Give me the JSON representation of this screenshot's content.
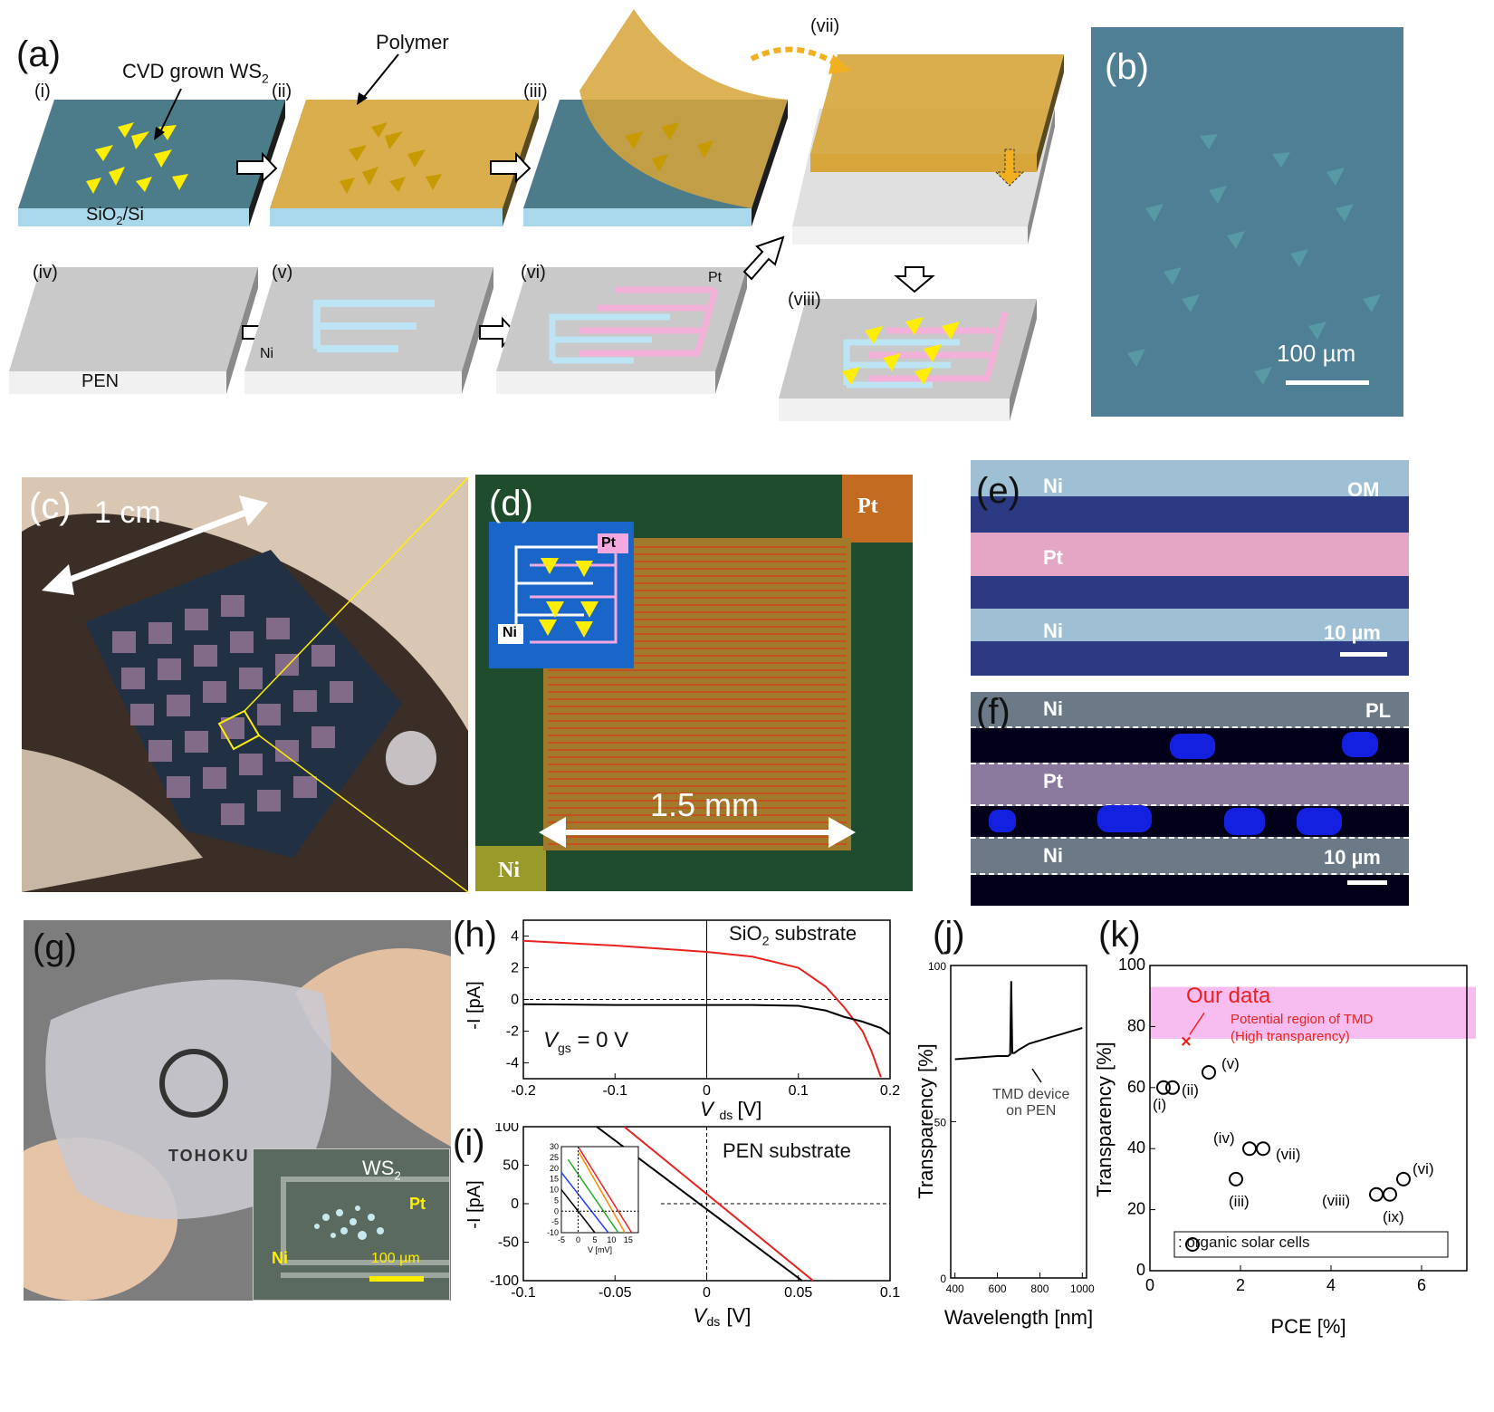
{
  "panels": {
    "a": {
      "label": "(a)",
      "steps": [
        "(i)",
        "(ii)",
        "(iii)",
        "(iv)",
        "(v)",
        "(vi)",
        "(vii)",
        "(viii)"
      ],
      "texts": {
        "cvd": "CVD grown WS",
        "cvd_sub": "2",
        "polymer": "Polymer",
        "sio2": "SiO",
        "sio2_sub": "2",
        "sio2_rest": "/Si",
        "pen": "PEN",
        "ni": "Ni",
        "pt": "Pt"
      }
    },
    "b": {
      "label": "(b)",
      "scale": "100 µm"
    },
    "c": {
      "label": "(c)",
      "scale": "1 cm"
    },
    "d": {
      "label": "(d)",
      "scale": "1.5 mm",
      "pt": "Pt",
      "ni": "Ni",
      "inset_pt": "Pt",
      "inset_ni": "Ni"
    },
    "e": {
      "label": "(e)",
      "tag": "OM",
      "rows": [
        "Ni",
        "Pt",
        "Ni"
      ],
      "scale": "10 µm"
    },
    "f": {
      "label": "(f)",
      "tag": "PL",
      "rows": [
        "Ni",
        "Pt",
        "Ni"
      ],
      "scale": "10 µm"
    },
    "g": {
      "label": "(g)",
      "brand": "TOHOKU",
      "inset_ws2": "WS",
      "inset_ws2_sub": "2",
      "inset_pt": "Pt",
      "inset_ni": "Ni",
      "inset_scale": "100 µm"
    },
    "h": {
      "label": "(h)",
      "annotation": "SiO",
      "annotation_sub": "2",
      "annotation_rest": " substrate",
      "vgs": "= 0 V",
      "vgs_v": "V",
      "vgs_sub": "gs"
    },
    "i": {
      "label": "(i)",
      "annotation": "PEN substrate",
      "inset_xlabel": "V   [mV]"
    },
    "j": {
      "label": "(j)",
      "annotation_line1": "TMD device",
      "annotation_line2": "on PEN"
    },
    "k": {
      "label": "(k)",
      "our_data": "Our data",
      "region_line1": "Potential region of TMD",
      "region_line2": "(High transparency)",
      "legend": ": organic solar cells"
    }
  },
  "colors": {
    "red": "#e8231f",
    "pink_region": "#f7bdf0",
    "wafer_blue": "#4c7b8a",
    "polymer": "#d7a53a",
    "triangle": "#ffee00",
    "pen_gray": "#c9c9c9"
  },
  "chart_data": [
    {
      "id": "h",
      "type": "line",
      "xlabel": "V_ds [V]",
      "ylabel": "-I_ds [pA]",
      "xlim": [
        -0.2,
        0.2
      ],
      "ylim": [
        -5,
        5
      ],
      "xticks": [
        "-0.2",
        "-0.1",
        "0",
        "0.1",
        "0.2"
      ],
      "yticks": [
        "4",
        "2",
        "0",
        "-2",
        "-4"
      ],
      "series": [
        {
          "color": "#e8231f",
          "x": [
            -0.2,
            -0.1,
            0,
            0.05,
            0.1,
            0.13,
            0.15,
            0.17,
            0.18,
            0.19
          ],
          "y": [
            3.7,
            3.4,
            3.0,
            2.7,
            2.0,
            0.8,
            -0.5,
            -2.0,
            -3.3,
            -4.9
          ]
        },
        {
          "color": "#000000",
          "x": [
            -0.2,
            -0.1,
            0,
            0.05,
            0.1,
            0.13,
            0.15,
            0.17,
            0.19,
            0.2
          ],
          "y": [
            -0.3,
            -0.35,
            -0.35,
            -0.35,
            -0.4,
            -0.7,
            -1.1,
            -1.4,
            -1.8,
            -2.2
          ]
        }
      ]
    },
    {
      "id": "i",
      "type": "line",
      "xlabel": "V_ds [V]",
      "ylabel": "-I_ds [pA]",
      "xlim": [
        -0.1,
        0.1
      ],
      "ylim": [
        -100,
        100
      ],
      "xticks": [
        "-0.1",
        "-0.05",
        "0",
        "0.05",
        "0.1"
      ],
      "yticks": [
        "100",
        "50",
        "0",
        "-50",
        "-100"
      ],
      "series": [
        {
          "color": "#000000",
          "x": [
            -0.06,
            0.052
          ],
          "y": [
            100,
            -100
          ]
        },
        {
          "color": "#e8231f",
          "x": [
            -0.045,
            0.058
          ],
          "y": [
            100,
            -100
          ]
        }
      ],
      "inset": {
        "xlim": [
          -5,
          18
        ],
        "ylim": [
          -10,
          30
        ],
        "xticks": [
          "-5",
          "0",
          "5",
          "10",
          "15"
        ],
        "yticks": [
          "30",
          "25",
          "20",
          "15",
          "10",
          "5",
          "0",
          "-5",
          "-10"
        ],
        "series": [
          {
            "color": "#000000",
            "x": [
              -5,
              5
            ],
            "y": [
              10,
              -10
            ]
          },
          {
            "color": "#2040ff",
            "x": [
              -5,
              9
            ],
            "y": [
              18,
              -10
            ]
          },
          {
            "color": "#22aa22",
            "x": [
              -3,
              12
            ],
            "y": [
              24,
              -10
            ]
          },
          {
            "color": "#ff8800",
            "x": [
              0,
              14
            ],
            "y": [
              28,
              -10
            ]
          },
          {
            "color": "#e8231f",
            "x": [
              0,
              16
            ],
            "y": [
              30,
              -10
            ]
          }
        ]
      }
    },
    {
      "id": "j",
      "type": "line",
      "xlabel": "Wavelength [nm]",
      "ylabel": "Transparency [%]",
      "xlim": [
        380,
        1020
      ],
      "ylim": [
        0,
        100
      ],
      "xticks": [
        "400",
        "600",
        "800",
        "1000"
      ],
      "yticks": [
        "100",
        "50",
        "0"
      ],
      "series": [
        {
          "color": "#000000",
          "x": [
            400,
            500,
            600,
            650,
            660,
            665,
            670,
            680,
            700,
            750,
            800,
            850,
            900,
            950,
            1000
          ],
          "y": [
            70,
            70.5,
            71,
            71,
            71.5,
            95,
            72,
            72,
            73,
            75,
            76,
            77,
            78,
            79,
            80
          ]
        }
      ]
    },
    {
      "id": "k",
      "type": "scatter",
      "xlabel": "PCE [%]",
      "ylabel": "Transparency [%]",
      "xlim": [
        0,
        7
      ],
      "ylim": [
        0,
        100
      ],
      "xticks": [
        "0",
        "2",
        "4",
        "6"
      ],
      "yticks": [
        "100",
        "80",
        "60",
        "40",
        "20",
        "0"
      ],
      "region": [
        76,
        93
      ],
      "points": [
        {
          "label": "(i)",
          "x": 0.3,
          "y": 60
        },
        {
          "label": "(ii)",
          "x": 0.5,
          "y": 60
        },
        {
          "label": "(iii)",
          "x": 1.9,
          "y": 30
        },
        {
          "label": "(iv)",
          "x": 2.2,
          "y": 40
        },
        {
          "label": "(v)",
          "x": 1.3,
          "y": 65
        },
        {
          "label": "(vi)",
          "x": 5.6,
          "y": 30
        },
        {
          "label": "(vii)",
          "x": 2.5,
          "y": 40
        },
        {
          "label": "(viii)",
          "x": 5.0,
          "y": 25
        },
        {
          "label": "(ix)",
          "x": 5.3,
          "y": 25
        }
      ],
      "our_point": {
        "x": 0.8,
        "y": 75
      }
    }
  ]
}
